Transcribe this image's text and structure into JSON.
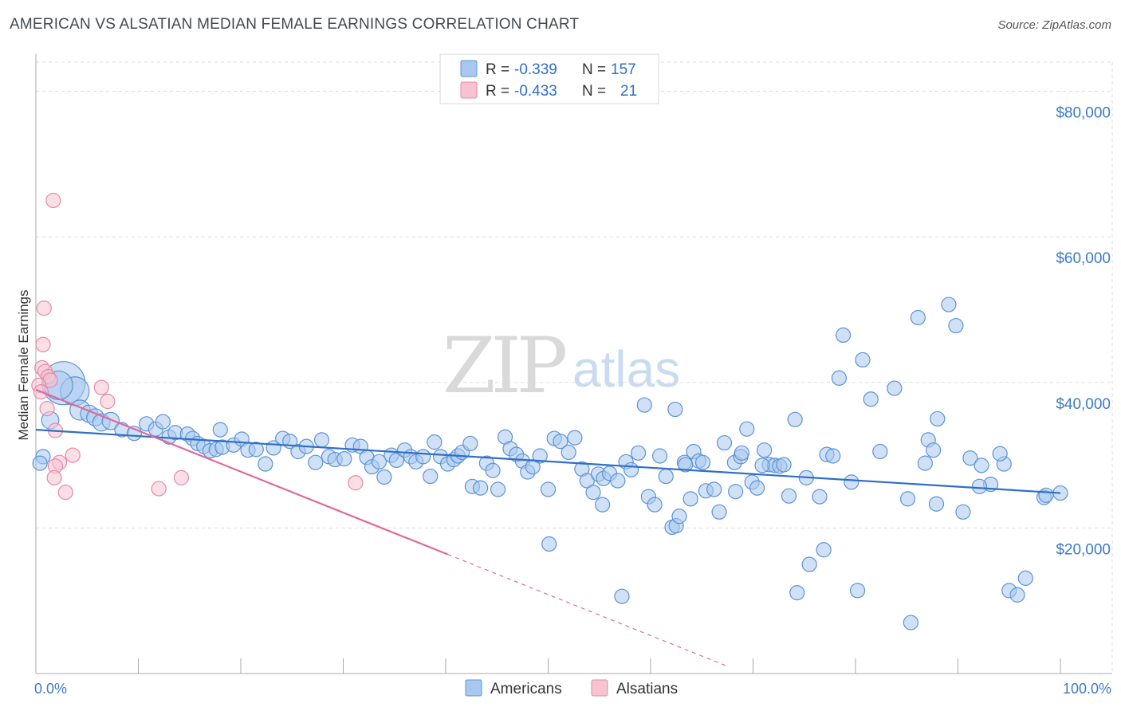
{
  "title": "AMERICAN VS ALSATIAN MEDIAN FEMALE EARNINGS CORRELATION CHART",
  "source": "Source: ZipAtlas.com",
  "watermark": {
    "zip": "ZIP",
    "atlas": "atlas"
  },
  "colors": {
    "americans_fill": "#a9c8ef",
    "americans_stroke": "#5b93d6",
    "americans_line": "#2f6fc7",
    "alsatians_fill": "#f7c3d2",
    "alsatians_stroke": "#e48aa6",
    "alsatians_line": "#e0699a",
    "grid": "#dddddd",
    "tick_label": "#3d7ac6"
  },
  "legend": {
    "rows": [
      {
        "r_label": "R =",
        "r_value": "-0.339",
        "n_label": "N =",
        "n_value": "157"
      },
      {
        "r_label": "R =",
        "r_value": "-0.433",
        "n_label": "N =",
        "n_value": "21"
      }
    ]
  },
  "bottom_legend": [
    "Americans",
    "Alsatians"
  ],
  "chart_data": {
    "type": "scatter",
    "title": "AMERICAN VS ALSATIAN MEDIAN FEMALE EARNINGS CORRELATION CHART",
    "xlabel": "",
    "ylabel": "Median Female Earnings",
    "xlim": [
      0,
      100
    ],
    "ylim": [
      0,
      84000
    ],
    "x_tick_labels": {
      "min": "0.0%",
      "max": "100.0%"
    },
    "y_ticks": [
      {
        "value": 20000,
        "label": "$20,000"
      },
      {
        "value": 40000,
        "label": "$40,000"
      },
      {
        "value": 60000,
        "label": "$60,000"
      },
      {
        "value": 80000,
        "label": "$80,000"
      }
    ],
    "series": [
      {
        "name": "Americans",
        "trend": {
          "x0": 0,
          "y0": 33500,
          "x1": 100,
          "y1": 24800,
          "solid_until": 100
        },
        "points": [
          [
            2.7,
            39900,
            3
          ],
          [
            3.8,
            38800,
            2
          ],
          [
            2.2,
            39600,
            2
          ],
          [
            4.3,
            36200,
            1.4
          ],
          [
            1.4,
            34800,
            1.2
          ],
          [
            0.7,
            29800,
            1
          ],
          [
            0.4,
            28900,
            1
          ],
          [
            5.2,
            35700,
            1.2
          ],
          [
            5.8,
            35200,
            1.2
          ],
          [
            6.4,
            34500,
            1.2
          ],
          [
            7.3,
            34700,
            1.2
          ],
          [
            8.4,
            33500,
            1
          ],
          [
            9.6,
            33000,
            1
          ],
          [
            10.8,
            34300,
            1
          ],
          [
            11.7,
            33600,
            1
          ],
          [
            12.4,
            34600,
            1
          ],
          [
            13.0,
            32500,
            1
          ],
          [
            13.6,
            33100,
            1
          ],
          [
            14.8,
            32900,
            1
          ],
          [
            15.3,
            32300,
            1
          ],
          [
            15.8,
            31600,
            1
          ],
          [
            16.4,
            31200,
            1
          ],
          [
            17.0,
            30600,
            1
          ],
          [
            17.6,
            30800,
            1
          ],
          [
            18.2,
            31100,
            1
          ],
          [
            18.0,
            33500,
            1
          ],
          [
            19.3,
            31400,
            1
          ],
          [
            20.1,
            32200,
            1
          ],
          [
            20.7,
            30700,
            1
          ],
          [
            21.5,
            30800,
            1
          ],
          [
            22.4,
            28800,
            1
          ],
          [
            23.2,
            31000,
            1
          ],
          [
            24.1,
            32300,
            1
          ],
          [
            24.8,
            31900,
            1
          ],
          [
            25.6,
            30500,
            1
          ],
          [
            26.4,
            31200,
            1
          ],
          [
            27.3,
            29000,
            1
          ],
          [
            27.9,
            32100,
            1
          ],
          [
            28.6,
            29800,
            1
          ],
          [
            29.2,
            29400,
            1
          ],
          [
            30.1,
            29500,
            1
          ],
          [
            30.9,
            31400,
            1
          ],
          [
            31.7,
            31200,
            1
          ],
          [
            32.3,
            29700,
            1
          ],
          [
            32.8,
            28400,
            1
          ],
          [
            33.5,
            29100,
            1
          ],
          [
            34.0,
            27000,
            1
          ],
          [
            34.7,
            30000,
            1
          ],
          [
            35.2,
            29300,
            1
          ],
          [
            36.0,
            30700,
            1
          ],
          [
            36.6,
            29800,
            1
          ],
          [
            37.1,
            29100,
            1
          ],
          [
            37.8,
            29800,
            1
          ],
          [
            38.5,
            27100,
            1
          ],
          [
            38.9,
            31800,
            1
          ],
          [
            39.5,
            29800,
            1
          ],
          [
            40.2,
            28800,
            1
          ],
          [
            40.8,
            29400,
            1
          ],
          [
            41.2,
            29900,
            1
          ],
          [
            41.6,
            30400,
            1
          ],
          [
            42.4,
            31600,
            1
          ],
          [
            42.6,
            25700,
            1
          ],
          [
            43.4,
            25500,
            1
          ],
          [
            44.0,
            28900,
            1
          ],
          [
            44.6,
            27900,
            1
          ],
          [
            45.1,
            25300,
            1
          ],
          [
            45.8,
            32500,
            1
          ],
          [
            46.3,
            30900,
            1
          ],
          [
            46.9,
            30100,
            1
          ],
          [
            47.5,
            29200,
            1
          ],
          [
            48.0,
            27700,
            1
          ],
          [
            48.5,
            28400,
            1
          ],
          [
            49.2,
            29900,
            1
          ],
          [
            50.0,
            25300,
            1
          ],
          [
            50.6,
            32300,
            1
          ],
          [
            51.2,
            31900,
            1
          ],
          [
            52.0,
            30400,
            1
          ],
          [
            52.6,
            32400,
            1
          ],
          [
            53.3,
            28100,
            1
          ],
          [
            53.8,
            26500,
            1
          ],
          [
            54.4,
            24900,
            1
          ],
          [
            54.9,
            27400,
            1
          ],
          [
            55.4,
            26800,
            1
          ],
          [
            56.0,
            27500,
            1
          ],
          [
            55.3,
            23200,
            1
          ],
          [
            56.8,
            26500,
            1
          ],
          [
            57.6,
            29100,
            1
          ],
          [
            58.1,
            28000,
            1
          ],
          [
            58.8,
            30300,
            1
          ],
          [
            59.4,
            36900,
            1
          ],
          [
            59.8,
            24300,
            1
          ],
          [
            60.4,
            23200,
            1
          ],
          [
            60.9,
            29900,
            1
          ],
          [
            61.5,
            27100,
            1
          ],
          [
            62.1,
            20100,
            1
          ],
          [
            62.5,
            20300,
            1
          ],
          [
            62.8,
            21600,
            1
          ],
          [
            63.3,
            29000,
            1
          ],
          [
            64.2,
            30500,
            1
          ],
          [
            64.7,
            29200,
            1
          ],
          [
            65.1,
            29000,
            1
          ],
          [
            65.4,
            25100,
            1
          ],
          [
            66.2,
            25300,
            1
          ],
          [
            66.7,
            22200,
            1
          ],
          [
            67.2,
            31700,
            1
          ],
          [
            68.2,
            29000,
            1
          ],
          [
            68.8,
            29800,
            1
          ],
          [
            69.4,
            33600,
            1
          ],
          [
            69.9,
            26300,
            1
          ],
          [
            70.4,
            25500,
            1
          ],
          [
            71.1,
            30700,
            1
          ],
          [
            71.6,
            28700,
            1
          ],
          [
            72.1,
            28600,
            1
          ],
          [
            72.6,
            28500,
            1
          ],
          [
            73.0,
            28700,
            1
          ],
          [
            73.5,
            24400,
            1
          ],
          [
            74.1,
            34900,
            1
          ],
          [
            75.2,
            26900,
            1
          ],
          [
            76.5,
            24300,
            1
          ],
          [
            77.2,
            30100,
            1
          ],
          [
            78.4,
            40600,
            1
          ],
          [
            78.8,
            46500,
            1
          ],
          [
            79.6,
            26300,
            1
          ],
          [
            80.7,
            43100,
            1
          ],
          [
            81.5,
            37700,
            1
          ],
          [
            82.4,
            30500,
            1
          ],
          [
            83.8,
            39200,
            1
          ],
          [
            85.1,
            24000,
            1
          ],
          [
            86.1,
            48900,
            1
          ],
          [
            87.1,
            32100,
            1
          ],
          [
            87.6,
            30700,
            1
          ],
          [
            88.0,
            35000,
            1
          ],
          [
            89.1,
            50700,
            1
          ],
          [
            89.8,
            47800,
            1
          ],
          [
            90.5,
            22200,
            1
          ],
          [
            91.2,
            29600,
            1
          ],
          [
            92.3,
            28600,
            1
          ],
          [
            93.2,
            26000,
            1
          ],
          [
            94.5,
            28800,
            1
          ],
          [
            95.0,
            11400,
            1
          ],
          [
            95.8,
            10800,
            1
          ],
          [
            96.6,
            13100,
            1
          ],
          [
            98.4,
            24200,
            1
          ],
          [
            98.6,
            24500,
            1
          ],
          [
            100.0,
            24800,
            1
          ],
          [
            62.4,
            36300,
            1
          ],
          [
            63.4,
            28700,
            1
          ],
          [
            68.3,
            25000,
            1
          ],
          [
            70.9,
            28600,
            1
          ],
          [
            75.5,
            15000,
            1
          ],
          [
            74.3,
            11100,
            1
          ],
          [
            76.9,
            17000,
            1
          ],
          [
            77.8,
            29900,
            1
          ],
          [
            85.4,
            7000,
            1
          ],
          [
            87.9,
            23300,
            1
          ],
          [
            94.1,
            30200,
            1
          ],
          [
            80.2,
            11400,
            1
          ],
          [
            92.1,
            25700,
            1
          ],
          [
            86.8,
            28900,
            1
          ],
          [
            57.2,
            10600,
            1
          ],
          [
            50.1,
            17800,
            1
          ],
          [
            63.9,
            24000,
            1
          ],
          [
            68.9,
            30300,
            1
          ]
        ]
      },
      {
        "name": "Alsatians",
        "trend": {
          "x0": 0,
          "y0": 39000,
          "x1": 67.5,
          "y1": 1000,
          "solid_until": 40.2
        },
        "points": [
          [
            1.7,
            65000,
            1
          ],
          [
            0.8,
            50200,
            1
          ],
          [
            0.7,
            45200,
            1
          ],
          [
            0.6,
            42000,
            1
          ],
          [
            0.9,
            41500,
            1
          ],
          [
            1.2,
            40800,
            1
          ],
          [
            1.4,
            40300,
            1
          ],
          [
            0.3,
            39600,
            1
          ],
          [
            0.5,
            38700,
            1
          ],
          [
            1.1,
            36400,
            1
          ],
          [
            6.4,
            39300,
            1
          ],
          [
            7.0,
            37400,
            1
          ],
          [
            1.9,
            33400,
            1
          ],
          [
            3.6,
            30000,
            1
          ],
          [
            2.3,
            29000,
            1
          ],
          [
            1.9,
            28500,
            1
          ],
          [
            1.8,
            26900,
            1
          ],
          [
            2.9,
            24900,
            1
          ],
          [
            12.0,
            25400,
            1
          ],
          [
            14.2,
            26900,
            1
          ],
          [
            31.2,
            26200,
            1
          ]
        ]
      }
    ]
  }
}
